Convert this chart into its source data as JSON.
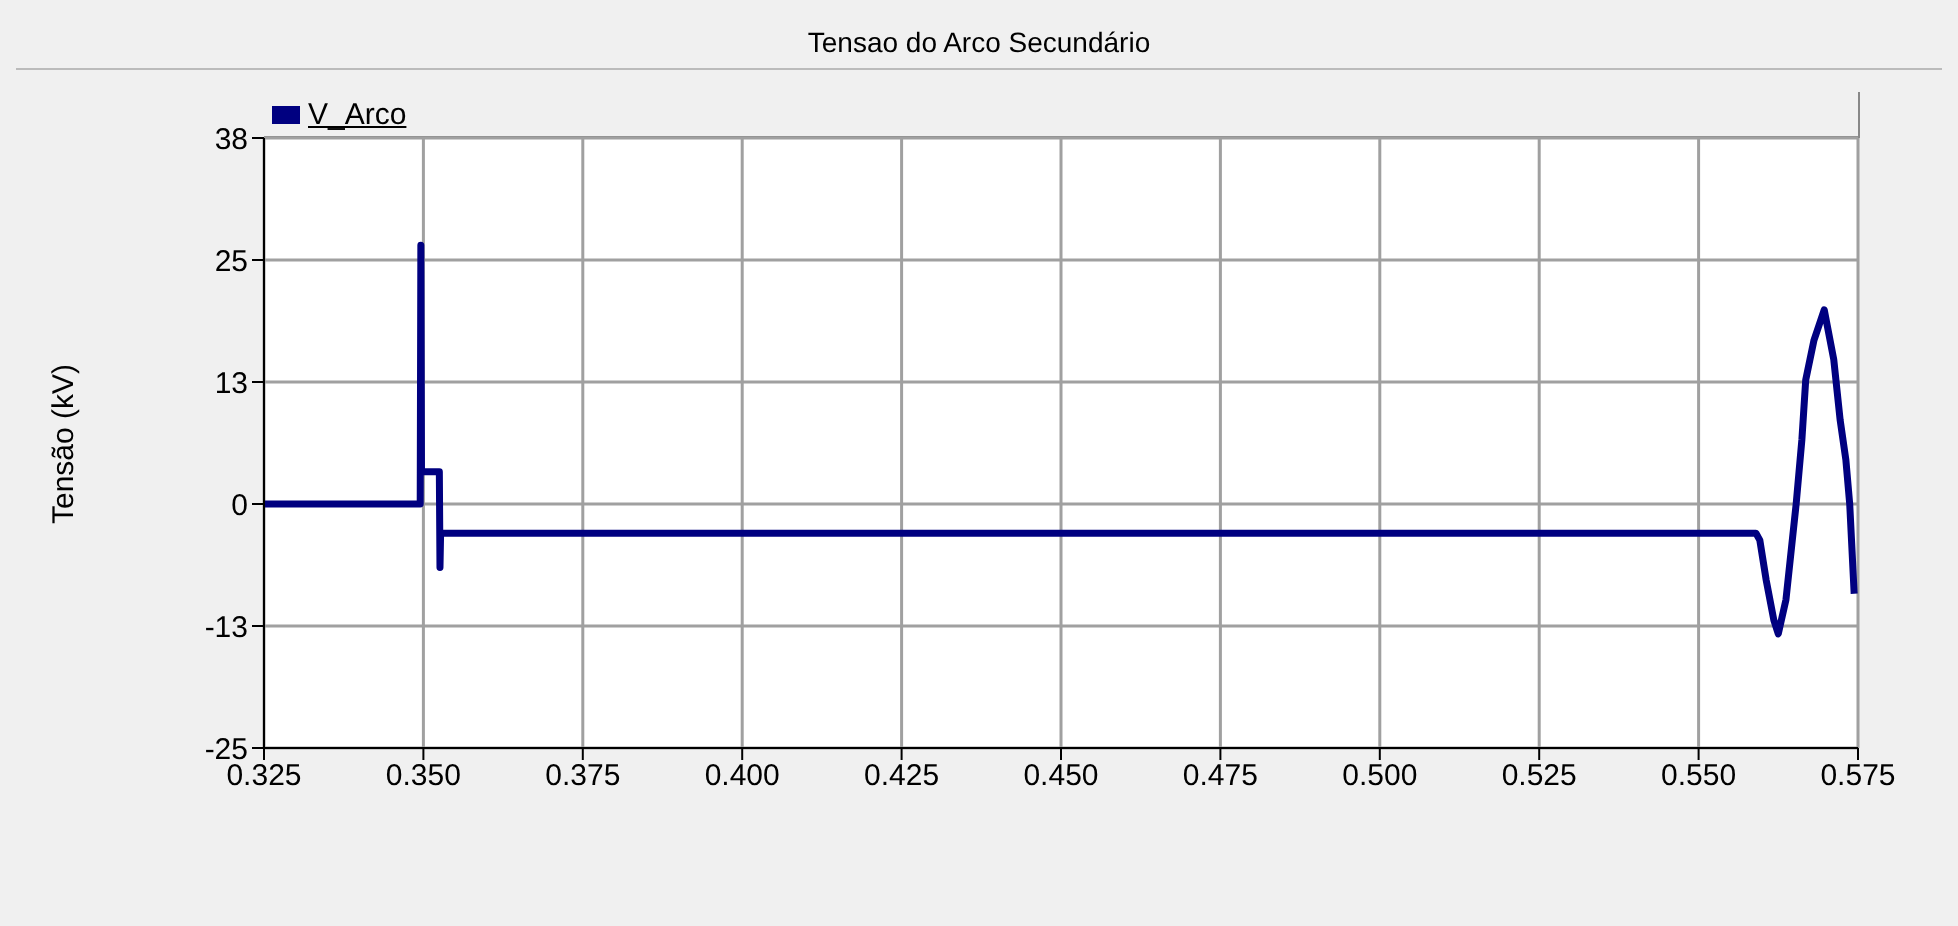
{
  "chart_data": {
    "type": "line",
    "title": "Tensao do Arco Secundário",
    "ylabel": "Tensão (kV)",
    "x": [
      0.325,
      0.3495,
      0.3496,
      0.3497,
      0.3498,
      0.3525,
      0.3526,
      0.3527,
      0.3528,
      0.37,
      0.38,
      0.5,
      0.559,
      0.5596,
      0.5606,
      0.5618,
      0.5625,
      0.5637,
      0.5653,
      0.5662,
      0.5668,
      0.5681,
      0.5697,
      0.5712,
      0.5722,
      0.5731,
      0.5737,
      0.5744
    ],
    "series": [
      {
        "name": "V_Arco",
        "color": "#000080",
        "values": [
          0,
          0,
          26.5,
          3.3,
          3.3,
          3.3,
          -6.5,
          -3,
          -3,
          -3,
          -3,
          -3,
          -3,
          -3.7,
          -7.8,
          -11.9,
          -13.3,
          -9.8,
          0,
          6.6,
          12.7,
          16.8,
          19.9,
          14.8,
          8.6,
          4.5,
          0,
          -9.2
        ]
      }
    ],
    "xlim": [
      0.325,
      0.575
    ],
    "xticks": [
      {
        "value": 0.325,
        "label": "0.325"
      },
      {
        "value": 0.35,
        "label": "0.350"
      },
      {
        "value": 0.375,
        "label": "0.375"
      },
      {
        "value": 0.4,
        "label": "0.400"
      },
      {
        "value": 0.425,
        "label": "0.425"
      },
      {
        "value": 0.45,
        "label": "0.450"
      },
      {
        "value": 0.475,
        "label": "0.475"
      },
      {
        "value": 0.5,
        "label": "0.500"
      },
      {
        "value": 0.525,
        "label": "0.525"
      },
      {
        "value": 0.55,
        "label": "0.550"
      },
      {
        "value": 0.575,
        "label": "0.575"
      }
    ],
    "ylim": [
      -25,
      37.5
    ],
    "yticks": [
      {
        "value": -25,
        "label": "-25"
      },
      {
        "value": -12.5,
        "label": "-13"
      },
      {
        "value": 0,
        "label": "0"
      },
      {
        "value": 12.5,
        "label": "13"
      },
      {
        "value": 25,
        "label": "25"
      },
      {
        "value": 37.5,
        "label": "38"
      }
    ],
    "grid": true,
    "legend": "top left",
    "marker": "none",
    "line_style": "solid"
  }
}
